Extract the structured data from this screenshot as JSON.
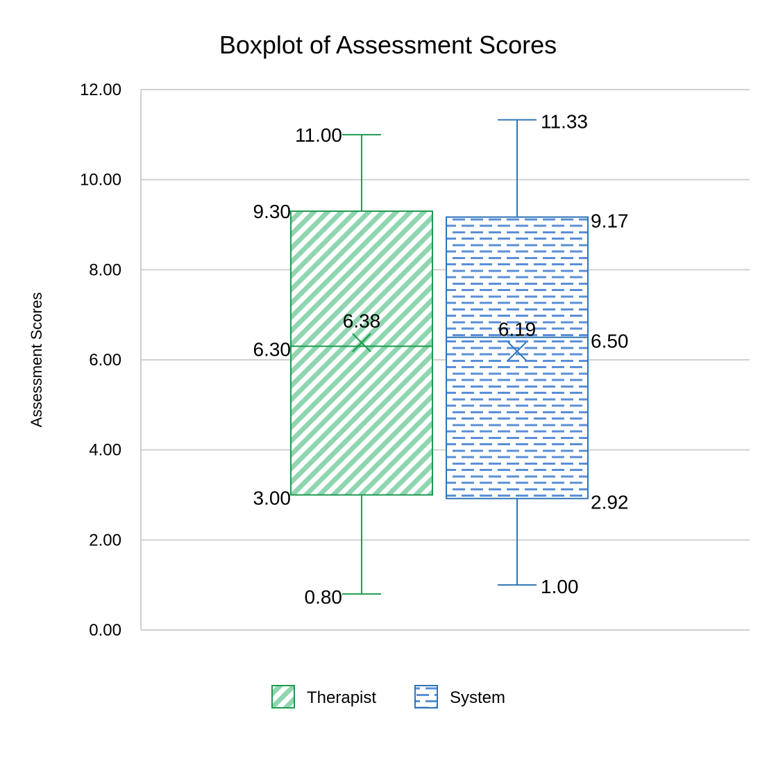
{
  "chart_data": {
    "type": "boxplot",
    "title": "Boxplot of Assessment Scores",
    "xlabel": "",
    "ylabel": "Assessment Scores",
    "ylim": [
      0,
      12
    ],
    "ytick_step": 2,
    "ytick_labels": [
      "0.00",
      "2.00",
      "4.00",
      "6.00",
      "8.00",
      "10.00",
      "12.00"
    ],
    "grid": true,
    "legend_position": "bottom",
    "series": [
      {
        "name": "Therapist",
        "color": "#1e9a4f",
        "fill_color": "#8fd6b0",
        "pattern": "diagonal-stripes",
        "min": 0.8,
        "q1": 3.0,
        "median": 6.3,
        "q3": 9.3,
        "max": 11.0,
        "mean": 6.38,
        "labels": {
          "min": "0.80",
          "q1": "3.00",
          "median": "6.30",
          "q3": "9.30",
          "max": "11.00",
          "mean": "6.38"
        }
      },
      {
        "name": "System",
        "color": "#2e75b6",
        "fill_color": "#5b8fd6",
        "pattern": "horizontal-dashes",
        "min": 1.0,
        "q1": 2.92,
        "median": 6.5,
        "q3": 9.17,
        "max": 11.33,
        "mean": 6.19,
        "labels": {
          "min": "1.00",
          "q1": "2.92",
          "median": "6.50",
          "q3": "9.17",
          "max": "11.33",
          "mean": "6.19"
        }
      }
    ]
  }
}
